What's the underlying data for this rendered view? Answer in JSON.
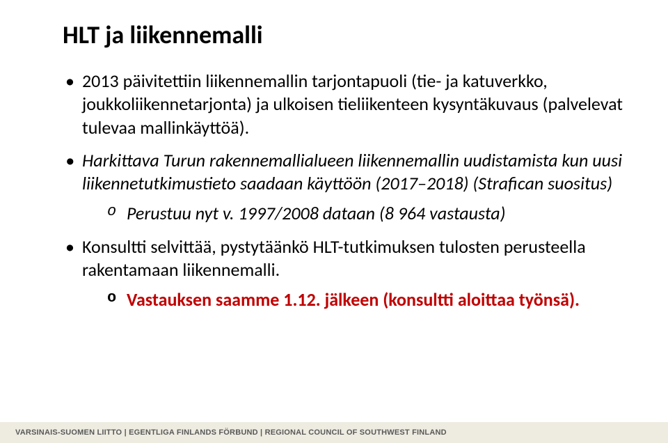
{
  "title": "HLT ja liikennemalli",
  "bullets": {
    "b1": "2013 päivitettiin liikennemallin tarjontapuoli (tie- ja katuverkko, joukkoliikennetarjonta) ja ulkoisen tieliikenteen kysyntäkuvaus (palvelevat tulevaa mallinkäyttöä).",
    "b2": "Harkittava Turun rakennemallialueen liikennemallin uudistamista kun uusi liikennetutkimustieto saadaan käyttöön (2017–2018) (Strafican suositus)",
    "b2_sub1": "Perustuu nyt v. 1997/2008 dataan (8 964 vastausta)",
    "b3": "Konsultti selvittää, pystytäänkö HLT-tutkimuksen tulosten perusteella rakentamaan liikennemalli.",
    "b3_sub1": "Vastauksen saamme 1.12. jälkeen (konsultti aloittaa työnsä)."
  },
  "colors": {
    "text": "#000000",
    "highlight": "#c00000",
    "footer_bg": "#eeece1",
    "footer_text": "#595959",
    "background": "#ffffff"
  },
  "footer": "VARSINAIS-SUOMEN LIITTO | EGENTLIGA FINLANDS FÖRBUND | REGIONAL COUNCIL OF SOUTHWEST FINLAND"
}
